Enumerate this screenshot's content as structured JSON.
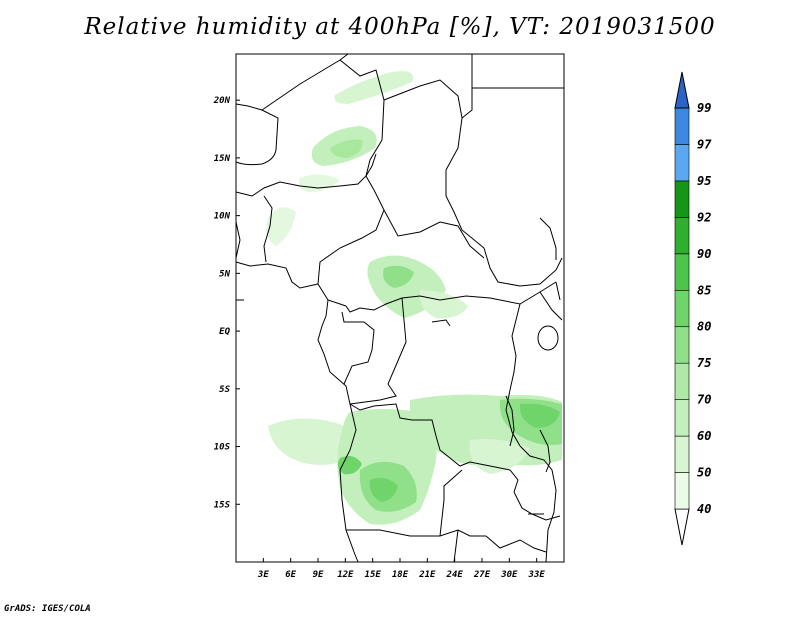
{
  "title": "Relative humidity at 400hPa [%], VT: 2019031500",
  "credit": "GrADS: IGES/COLA",
  "map": {
    "lon_range": [
      0,
      36
    ],
    "lat_range": [
      -20,
      24
    ],
    "x_ticks": [
      "3E",
      "6E",
      "9E",
      "12E",
      "15E",
      "18E",
      "21E",
      "24E",
      "27E",
      "30E",
      "33E"
    ],
    "y_ticks": [
      "20N",
      "15N",
      "10N",
      "5N",
      "EQ",
      "5S",
      "10S",
      "15S"
    ]
  },
  "colorbar": {
    "levels": [
      "40",
      "50",
      "60",
      "70",
      "75",
      "80",
      "85",
      "90",
      "92",
      "95",
      "97",
      "99"
    ],
    "colors": [
      "#ffffff",
      "#eafbe6",
      "#d6f5d0",
      "#c2efbb",
      "#aee9a6",
      "#8fe088",
      "#6fd46a",
      "#4cc54a",
      "#2eb02c",
      "#169616",
      "#5aa8f0",
      "#3c88e0",
      "#2a64c8"
    ]
  }
}
